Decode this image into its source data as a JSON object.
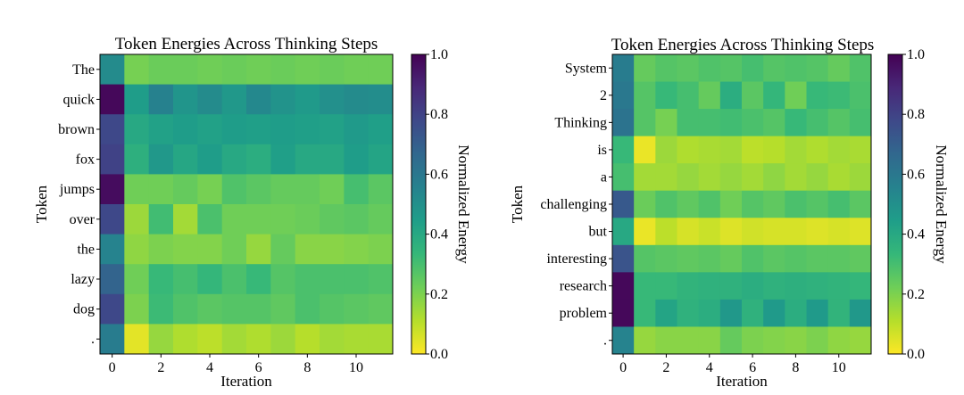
{
  "colormap": {
    "name": "viridis_r",
    "stops": [
      "#fde725",
      "#b5de2b",
      "#6ece58",
      "#35b779",
      "#1f9e89",
      "#26828e",
      "#31688e",
      "#3e4989",
      "#482878",
      "#440154"
    ]
  },
  "chart_data": [
    {
      "type": "heatmap",
      "title": "Token Energies Across Thinking Steps",
      "xlabel": "Iteration",
      "ylabel": "Token",
      "colorbar_label": "Normalized Energy",
      "x_ticks": [
        "0",
        "2",
        "4",
        "6",
        "8",
        "10"
      ],
      "x_tick_values": [
        0,
        2,
        4,
        6,
        8,
        10
      ],
      "colorbar_ticks": [
        "0.0",
        "0.2",
        "0.4",
        "0.6",
        "0.8",
        "1.0"
      ],
      "vmin": 0,
      "vmax": 1,
      "iterations": [
        0,
        1,
        2,
        3,
        4,
        5,
        6,
        7,
        8,
        9,
        10,
        11
      ],
      "tokens": [
        "The",
        "quick",
        "brown",
        "fox",
        "jumps",
        "over",
        "the",
        "lazy",
        "dog",
        "."
      ],
      "values": [
        [
          0.52,
          0.21,
          0.23,
          0.23,
          0.22,
          0.23,
          0.22,
          0.23,
          0.22,
          0.23,
          0.22,
          0.22
        ],
        [
          0.98,
          0.45,
          0.56,
          0.48,
          0.52,
          0.47,
          0.53,
          0.49,
          0.46,
          0.5,
          0.52,
          0.51
        ],
        [
          0.78,
          0.4,
          0.43,
          0.45,
          0.43,
          0.45,
          0.44,
          0.45,
          0.44,
          0.43,
          0.46,
          0.44
        ],
        [
          0.8,
          0.37,
          0.47,
          0.41,
          0.45,
          0.4,
          0.38,
          0.44,
          0.4,
          0.4,
          0.45,
          0.42
        ],
        [
          0.97,
          0.22,
          0.22,
          0.24,
          0.21,
          0.28,
          0.26,
          0.24,
          0.24,
          0.22,
          0.3,
          0.26
        ],
        [
          0.78,
          0.15,
          0.31,
          0.14,
          0.29,
          0.22,
          0.22,
          0.22,
          0.23,
          0.25,
          0.26,
          0.24
        ],
        [
          0.55,
          0.17,
          0.2,
          0.19,
          0.19,
          0.22,
          0.16,
          0.24,
          0.18,
          0.18,
          0.19,
          0.2
        ],
        [
          0.68,
          0.22,
          0.33,
          0.3,
          0.34,
          0.29,
          0.33,
          0.27,
          0.29,
          0.29,
          0.29,
          0.28
        ],
        [
          0.78,
          0.2,
          0.32,
          0.28,
          0.26,
          0.27,
          0.27,
          0.25,
          0.29,
          0.27,
          0.26,
          0.25
        ],
        [
          0.58,
          0.04,
          0.16,
          0.12,
          0.1,
          0.14,
          0.12,
          0.15,
          0.11,
          0.14,
          0.13,
          0.13
        ]
      ]
    },
    {
      "type": "heatmap",
      "title": "Token Energies Across Thinking Steps",
      "xlabel": "Iteration",
      "ylabel": "Token",
      "colorbar_label": "Normalized Energy",
      "x_ticks": [
        "0",
        "2",
        "4",
        "6",
        "8",
        "10"
      ],
      "x_tick_values": [
        0,
        2,
        4,
        6,
        8,
        10
      ],
      "colorbar_ticks": [
        "0.0",
        "0.2",
        "0.4",
        "0.6",
        "0.8",
        "1.0"
      ],
      "vmin": 0,
      "vmax": 1,
      "iterations": [
        0,
        1,
        2,
        3,
        4,
        5,
        6,
        7,
        8,
        9,
        10,
        11
      ],
      "tokens": [
        "System",
        "2",
        "Thinking",
        "is",
        "a",
        "challenging",
        "but",
        "interesting",
        "research",
        "problem",
        "."
      ],
      "values": [
        [
          0.58,
          0.24,
          0.27,
          0.26,
          0.28,
          0.27,
          0.3,
          0.27,
          0.28,
          0.27,
          0.24,
          0.28
        ],
        [
          0.6,
          0.27,
          0.33,
          0.3,
          0.24,
          0.38,
          0.26,
          0.34,
          0.22,
          0.33,
          0.32,
          0.29
        ],
        [
          0.62,
          0.27,
          0.21,
          0.3,
          0.3,
          0.31,
          0.29,
          0.27,
          0.33,
          0.3,
          0.27,
          0.3
        ],
        [
          0.33,
          0.03,
          0.15,
          0.12,
          0.13,
          0.14,
          0.1,
          0.11,
          0.14,
          0.12,
          0.14,
          0.13
        ],
        [
          0.3,
          0.14,
          0.14,
          0.16,
          0.14,
          0.16,
          0.14,
          0.17,
          0.14,
          0.16,
          0.13,
          0.15
        ],
        [
          0.72,
          0.23,
          0.28,
          0.25,
          0.28,
          0.22,
          0.27,
          0.25,
          0.29,
          0.27,
          0.3,
          0.26
        ],
        [
          0.4,
          0.03,
          0.1,
          0.06,
          0.08,
          0.05,
          0.07,
          0.06,
          0.06,
          0.05,
          0.06,
          0.05
        ],
        [
          0.74,
          0.27,
          0.26,
          0.25,
          0.26,
          0.24,
          0.28,
          0.26,
          0.27,
          0.26,
          0.26,
          0.25
        ],
        [
          0.98,
          0.33,
          0.33,
          0.35,
          0.36,
          0.36,
          0.38,
          0.36,
          0.37,
          0.36,
          0.35,
          0.34
        ],
        [
          0.98,
          0.33,
          0.42,
          0.36,
          0.38,
          0.47,
          0.36,
          0.46,
          0.38,
          0.46,
          0.35,
          0.47
        ],
        [
          0.55,
          0.16,
          0.18,
          0.18,
          0.18,
          0.24,
          0.2,
          0.19,
          0.18,
          0.2,
          0.17,
          0.16
        ]
      ]
    }
  ]
}
